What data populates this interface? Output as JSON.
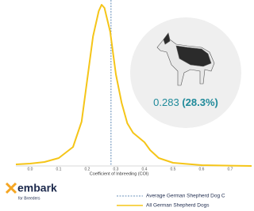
{
  "chart_data": {
    "type": "line",
    "x_label": "Coefficient of Inbreeding (COI)",
    "x": [
      -0.05,
      0.0,
      0.05,
      0.1,
      0.15,
      0.18,
      0.2,
      0.22,
      0.24,
      0.25,
      0.26,
      0.28,
      0.3,
      0.32,
      0.34,
      0.36,
      0.38,
      0.4,
      0.42,
      0.45,
      0.5,
      0.6,
      0.7,
      0.775
    ],
    "series": [
      {
        "name": "All German Shepherd Dogs",
        "color": "#f5c518",
        "values": [
          0.1,
          0.15,
          0.25,
          0.5,
          1.2,
          2.8,
          5.5,
          8.2,
          9.8,
          10.2,
          10.0,
          8.5,
          5.8,
          4.0,
          2.7,
          2.1,
          1.8,
          1.5,
          1.0,
          0.5,
          0.2,
          0.05,
          0.02,
          0.0
        ]
      }
    ],
    "reference_line": {
      "name": "Average German Shepherd Dog C",
      "value": 0.283,
      "color": "#3a6ea5"
    },
    "annotation_value": "0.283",
    "annotation_percent": "(28.3%)",
    "xlim": [
      -0.05,
      0.775
    ],
    "ylim": [
      0,
      10.5
    ],
    "xticks": [
      {
        "value": 0,
        "label": "0.0"
      },
      0.1,
      0.2,
      0.3,
      0.4,
      0.5,
      0.6,
      0.7
    ],
    "brand": "embark",
    "brand_sub": "for Breeders"
  }
}
